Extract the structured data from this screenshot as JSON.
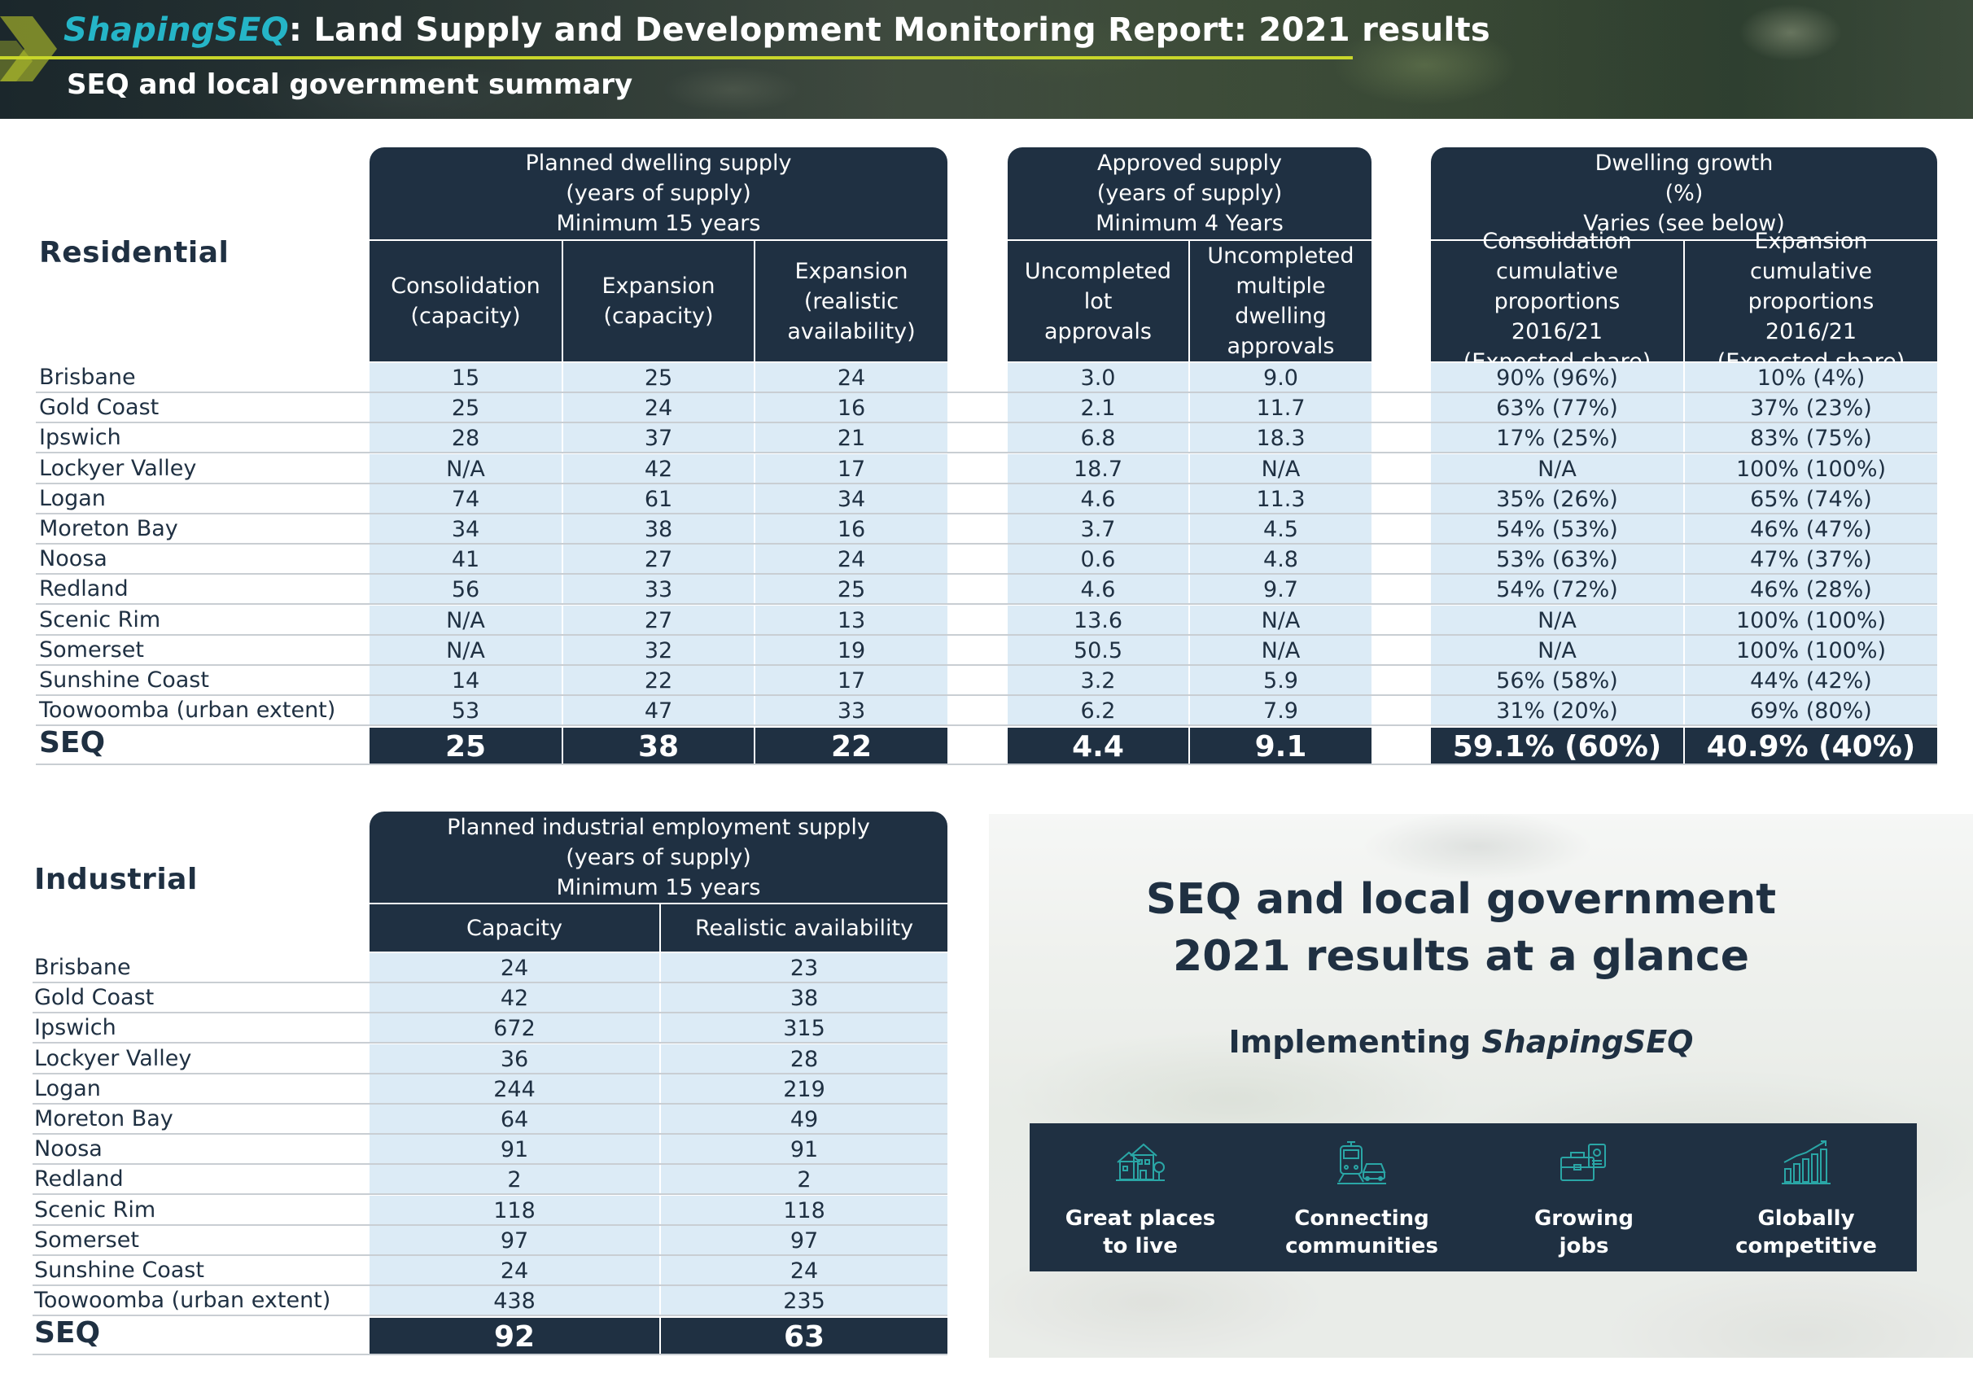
{
  "header": {
    "brand": "ShapingSEQ",
    "title_rest": ": Land Supply and Development Monitoring Report: 2021 results",
    "subtitle": "SEQ and local government summary"
  },
  "residential": {
    "section_label": "Residential",
    "groups": [
      {
        "lines": [
          "Planned dwelling supply",
          "(years of supply)",
          "Minimum 15 years"
        ]
      },
      {
        "lines": [
          "Approved supply",
          "(years of supply)",
          "Minimum 4 Years"
        ]
      },
      {
        "lines": [
          "Dwelling growth",
          "(%)",
          "Varies (see below)"
        ]
      }
    ],
    "columns": [
      {
        "lines": [
          "Consolidation",
          "(capacity)"
        ]
      },
      {
        "lines": [
          "Expansion",
          "(capacity)"
        ]
      },
      {
        "lines": [
          "Expansion",
          "(realistic",
          "availability)"
        ]
      },
      {
        "lines": [
          "Uncompleted lot",
          "approvals"
        ]
      },
      {
        "lines": [
          "Uncompleted",
          "multiple",
          "dwelling",
          "approvals"
        ]
      },
      {
        "lines": [
          "Consolidation",
          "cumulative proportions",
          "2016/21",
          "(Expected share)"
        ]
      },
      {
        "lines": [
          "Expansion",
          "cumulative proportions",
          "2016/21",
          "(Expected share)"
        ]
      }
    ],
    "rows": [
      {
        "name": "Brisbane",
        "values": [
          "15",
          "25",
          "24",
          "3.0",
          "9.0",
          "90% (96%)",
          "10% (4%)"
        ]
      },
      {
        "name": "Gold Coast",
        "values": [
          "25",
          "24",
          "16",
          "2.1",
          "11.7",
          "63% (77%)",
          "37% (23%)"
        ]
      },
      {
        "name": "Ipswich",
        "values": [
          "28",
          "37",
          "21",
          "6.8",
          "18.3",
          "17% (25%)",
          "83% (75%)"
        ]
      },
      {
        "name": "Lockyer Valley",
        "values": [
          "N/A",
          "42",
          "17",
          "18.7",
          "N/A",
          "N/A",
          "100% (100%)"
        ]
      },
      {
        "name": "Logan",
        "values": [
          "74",
          "61",
          "34",
          "4.6",
          "11.3",
          "35% (26%)",
          "65% (74%)"
        ]
      },
      {
        "name": "Moreton Bay",
        "values": [
          "34",
          "38",
          "16",
          "3.7",
          "4.5",
          "54% (53%)",
          "46% (47%)"
        ]
      },
      {
        "name": "Noosa",
        "values": [
          "41",
          "27",
          "24",
          "0.6",
          "4.8",
          "53% (63%)",
          "47% (37%)"
        ]
      },
      {
        "name": "Redland",
        "values": [
          "56",
          "33",
          "25",
          "4.6",
          "9.7",
          "54% (72%)",
          "46% (28%)"
        ]
      },
      {
        "name": "Scenic Rim",
        "values": [
          "N/A",
          "27",
          "13",
          "13.6",
          "N/A",
          "N/A",
          "100% (100%)"
        ]
      },
      {
        "name": "Somerset",
        "values": [
          "N/A",
          "32",
          "19",
          "50.5",
          "N/A",
          "N/A",
          "100% (100%)"
        ]
      },
      {
        "name": "Sunshine Coast",
        "values": [
          "14",
          "22",
          "17",
          "3.2",
          "5.9",
          "56% (58%)",
          "44% (42%)"
        ]
      },
      {
        "name": "Toowoomba (urban extent)",
        "values": [
          "53",
          "47",
          "33",
          "6.2",
          "7.9",
          "31% (20%)",
          "69% (80%)"
        ]
      }
    ],
    "total": {
      "name": "SEQ",
      "values": [
        "25",
        "38",
        "22",
        "4.4",
        "9.1",
        "59.1% (60%)",
        "40.9% (40%)"
      ]
    }
  },
  "industrial": {
    "section_label": "Industrial",
    "group": {
      "lines": [
        "Planned industrial employment supply",
        "(years of supply)",
        "Minimum 15 years"
      ]
    },
    "columns": [
      "Capacity",
      "Realistic availability"
    ],
    "rows": [
      {
        "name": "Brisbane",
        "values": [
          "24",
          "23"
        ]
      },
      {
        "name": "Gold Coast",
        "values": [
          "42",
          "38"
        ]
      },
      {
        "name": "Ipswich",
        "values": [
          "672",
          "315"
        ]
      },
      {
        "name": "Lockyer Valley",
        "values": [
          "36",
          "28"
        ]
      },
      {
        "name": "Logan",
        "values": [
          "244",
          "219"
        ]
      },
      {
        "name": "Moreton Bay",
        "values": [
          "64",
          "49"
        ]
      },
      {
        "name": "Noosa",
        "values": [
          "91",
          "91"
        ]
      },
      {
        "name": "Redland",
        "values": [
          "2",
          "2"
        ]
      },
      {
        "name": "Scenic Rim",
        "values": [
          "118",
          "118"
        ]
      },
      {
        "name": "Somerset",
        "values": [
          "97",
          "97"
        ]
      },
      {
        "name": "Sunshine Coast",
        "values": [
          "24",
          "24"
        ]
      },
      {
        "name": "Toowoomba (urban extent)",
        "values": [
          "438",
          "235"
        ]
      }
    ],
    "total": {
      "name": "SEQ",
      "values": [
        "92",
        "63"
      ]
    }
  },
  "glance": {
    "title_line1": "SEQ and local government",
    "title_line2": "2021 results at a glance",
    "sub_prefix": "Implementing ",
    "sub_brand": "ShapingSEQ",
    "pillars": [
      {
        "icon": "houses-icon",
        "line1": "Great places",
        "line2": "to live"
      },
      {
        "icon": "train-car-icon",
        "line1": "Connecting",
        "line2": "communities"
      },
      {
        "icon": "briefcase-badge-icon",
        "line1": "Growing",
        "line2": "jobs"
      },
      {
        "icon": "growth-chart-icon",
        "line1": "Globally",
        "line2": "competitive"
      }
    ]
  },
  "colors": {
    "navy": "#1f3042",
    "cell_blue": "#dcebf6",
    "brand_teal": "#25b5c7",
    "accent_lime": "#c8d62a",
    "icon_teal": "#2aa6a6"
  }
}
